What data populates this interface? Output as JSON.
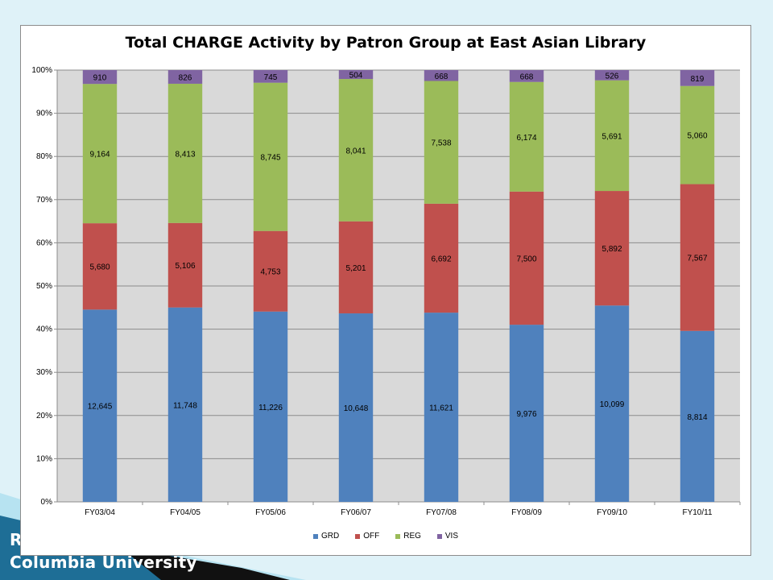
{
  "slide": {
    "footer_line1": "R",
    "footer_line2": "Columbia University"
  },
  "colors": {
    "GRD": "#4f81bd",
    "OFF": "#c0504d",
    "REG": "#9bbb59",
    "VIS": "#8064a2",
    "plot_bg": "#d9d9d9"
  },
  "chart_data": {
    "type": "bar",
    "stacked": "percent",
    "title": "Total CHARGE Activity by Patron Group at East Asian Library",
    "xlabel": "",
    "ylabel": "",
    "ylim": [
      0,
      100
    ],
    "yticks": [
      "0%",
      "10%",
      "20%",
      "30%",
      "40%",
      "50%",
      "60%",
      "70%",
      "80%",
      "90%",
      "100%"
    ],
    "legend_position": "bottom",
    "gridlines": true,
    "categories": [
      "FY03/04",
      "FY04/05",
      "FY05/06",
      "FY06/07",
      "FY07/08",
      "FY08/09",
      "FY09/10",
      "FY10/11"
    ],
    "series": [
      {
        "name": "GRD",
        "values": [
          12645,
          11748,
          11226,
          10648,
          11621,
          9976,
          10099,
          8814
        ],
        "labels": [
          "12,645",
          "11,748",
          "11,226",
          "10,648",
          "11,621",
          "9,976",
          "10,099",
          "8,814"
        ]
      },
      {
        "name": "OFF",
        "values": [
          5680,
          5106,
          4753,
          5201,
          6692,
          7500,
          5892,
          7567
        ],
        "labels": [
          "5,680",
          "5,106",
          "4,753",
          "5,201",
          "6,692",
          "7,500",
          "5,892",
          "7,567"
        ]
      },
      {
        "name": "REG",
        "values": [
          9164,
          8413,
          8745,
          8041,
          7538,
          6174,
          5691,
          5060
        ],
        "labels": [
          "9,164",
          "8,413",
          "8,745",
          "8,041",
          "7,538",
          "6,174",
          "5,691",
          "5,060"
        ]
      },
      {
        "name": "VIS",
        "values": [
          910,
          826,
          745,
          504,
          668,
          668,
          526,
          819
        ],
        "labels": [
          "910",
          "826",
          "745",
          "504",
          "668",
          "668",
          "526",
          "819"
        ]
      }
    ]
  }
}
